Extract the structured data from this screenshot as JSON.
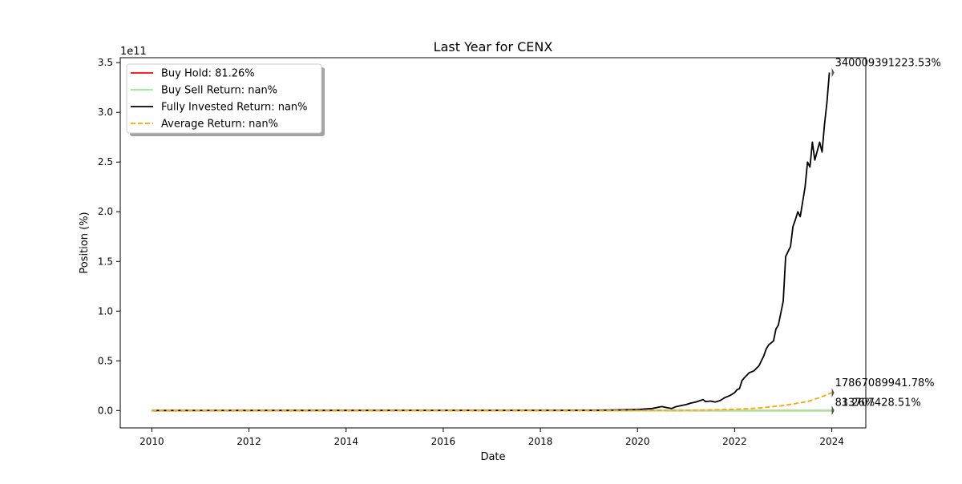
{
  "chart_data": {
    "type": "line",
    "title": "Last Year for CENX",
    "xlabel": "Date",
    "ylabel": "Position (%)",
    "y_multiplier": "1e11",
    "xlim": [
      2009.35,
      2024.7
    ],
    "ylim": [
      -0.175,
      3.55
    ],
    "x_ticks": [
      2010,
      2012,
      2014,
      2016,
      2018,
      2020,
      2022,
      2024
    ],
    "x_tick_labels": [
      "2010",
      "2012",
      "2014",
      "2016",
      "2018",
      "2020",
      "2022",
      "2024"
    ],
    "y_ticks": [
      0.0,
      0.5,
      1.0,
      1.5,
      2.0,
      2.5,
      3.0,
      3.5
    ],
    "y_tick_labels": [
      "0.0",
      "0.5",
      "1.0",
      "1.5",
      "2.0",
      "2.5",
      "3.0",
      "3.5"
    ],
    "grid": false,
    "legend_position": "top-left",
    "series": [
      {
        "name": "Buy Hold: 81.26%",
        "color": "#ff0000",
        "dash": "solid",
        "x": [
          2010.0,
          2024.0
        ],
        "y": [
          0.0,
          0.0
        ]
      },
      {
        "name": "Buy Sell Return: nan%",
        "color": "#90ee90",
        "dash": "solid",
        "x": [
          2010.0,
          2024.0
        ],
        "y": [
          0.0,
          0.0
        ]
      },
      {
        "name": "Fully Invested Return: nan%",
        "color": "#000000",
        "dash": "solid",
        "x": [
          2010.0,
          2019.0,
          2019.5,
          2020.0,
          2020.3,
          2020.5,
          2020.6,
          2020.7,
          2020.8,
          2020.9,
          2021.0,
          2021.1,
          2021.2,
          2021.35,
          2021.4,
          2021.5,
          2021.6,
          2021.7,
          2021.8,
          2021.9,
          2022.0,
          2022.05,
          2022.1,
          2022.15,
          2022.2,
          2022.3,
          2022.4,
          2022.5,
          2022.6,
          2022.65,
          2022.7,
          2022.8,
          2022.85,
          2022.9,
          2023.0,
          2023.05,
          2023.1,
          2023.15,
          2023.2,
          2023.25,
          2023.3,
          2023.35,
          2023.4,
          2023.45,
          2023.5,
          2023.55,
          2023.6,
          2023.65,
          2023.75,
          2023.8,
          2023.85,
          2023.9,
          2023.95
        ],
        "y": [
          0.0,
          0.002,
          0.005,
          0.01,
          0.02,
          0.04,
          0.03,
          0.02,
          0.04,
          0.05,
          0.06,
          0.075,
          0.085,
          0.11,
          0.09,
          0.095,
          0.085,
          0.1,
          0.13,
          0.15,
          0.18,
          0.21,
          0.22,
          0.3,
          0.33,
          0.38,
          0.4,
          0.45,
          0.55,
          0.62,
          0.66,
          0.7,
          0.82,
          0.86,
          1.1,
          1.55,
          1.6,
          1.65,
          1.85,
          1.92,
          2.0,
          1.95,
          2.1,
          2.25,
          2.5,
          2.45,
          2.7,
          2.52,
          2.7,
          2.6,
          2.88,
          3.1,
          3.4
        ]
      },
      {
        "name": "Average Return: nan%",
        "color": "#ffa500",
        "dash": "dashed",
        "x": [
          2010.0,
          2018.0,
          2020.0,
          2021.0,
          2021.5,
          2022.0,
          2022.5,
          2023.0,
          2023.5,
          2023.75,
          2024.0
        ],
        "y": [
          0.0,
          0.0,
          0.001,
          0.003,
          0.006,
          0.012,
          0.025,
          0.05,
          0.09,
          0.13,
          0.179
        ]
      }
    ],
    "annotations": [
      {
        "text": "340009391223.53%",
        "x": 2024.0,
        "y": 3.4
      },
      {
        "text": "17867089941.78%",
        "x": 2024.0,
        "y": 0.179
      },
      {
        "text": "81.26%",
        "x": 2024.0,
        "y": 0.0
      },
      {
        "text": "33707428.51%",
        "x": 2024.0,
        "y": 0.0
      }
    ]
  }
}
